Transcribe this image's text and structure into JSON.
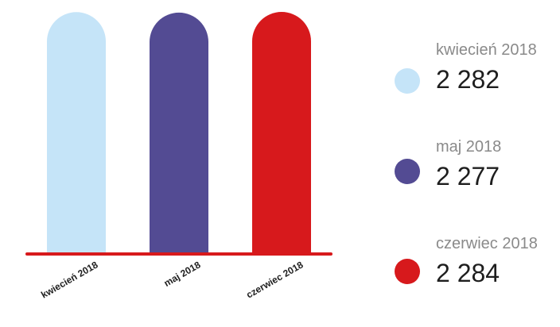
{
  "chart_data": {
    "type": "bar",
    "categories": [
      "kwiecień 2018",
      "maj 2018",
      "czerwiec 2018"
    ],
    "values": [
      2282,
      2277,
      2284
    ],
    "title": "",
    "xlabel": "",
    "ylabel": "",
    "colors": [
      "#c5e4f8",
      "#534b93",
      "#d7191c"
    ],
    "axis_color": "#d7191c",
    "legend_position": "right"
  },
  "legend": [
    {
      "period": "kwiecień 2018",
      "value": "2 282"
    },
    {
      "period": "maj 2018",
      "value": "2 277"
    },
    {
      "period": "czerwiec 2018",
      "value": "2 284"
    }
  ]
}
